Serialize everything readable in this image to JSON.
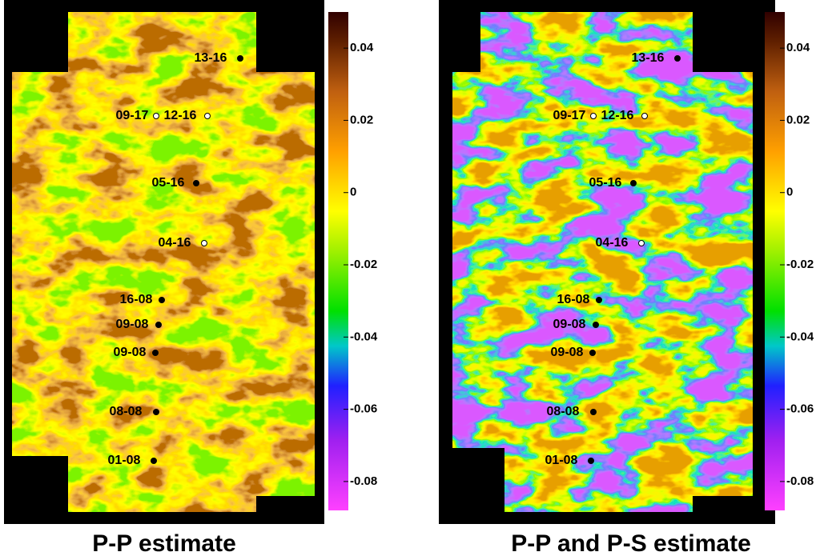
{
  "chart_data": [
    {
      "type": "heatmap",
      "title": "P-P estimate",
      "ylim": [
        -0.088,
        0.05
      ],
      "yticks": [
        0.04,
        0.02,
        0,
        -0.02,
        -0.04,
        -0.06,
        -0.08
      ],
      "wells": [
        {
          "label": "13-16",
          "marker": "#000000"
        },
        {
          "label": "09-17",
          "marker": "#ffffff"
        },
        {
          "label": "12-16",
          "marker": "#ffffff"
        },
        {
          "label": "05-16",
          "marker": "#000000"
        },
        {
          "label": "04-16",
          "marker": "#ffffff"
        },
        {
          "label": "16-08",
          "marker": "#000000"
        },
        {
          "label": "09-08",
          "marker": "#000000"
        },
        {
          "label": "09-08",
          "marker": "#000000"
        },
        {
          "label": "08-08",
          "marker": "#000000"
        },
        {
          "label": "01-08",
          "marker": "#000000"
        }
      ]
    },
    {
      "type": "heatmap",
      "title": "P-P and P-S estimate",
      "ylim": [
        -0.088,
        0.05
      ],
      "yticks": [
        0.04,
        0.02,
        0,
        -0.02,
        -0.04,
        -0.06,
        -0.08
      ],
      "wells": [
        {
          "label": "13-16",
          "marker": "#000000"
        },
        {
          "label": "09-17",
          "marker": "#ffffff"
        },
        {
          "label": "12-16",
          "marker": "#ffffff"
        },
        {
          "label": "05-16",
          "marker": "#000000"
        },
        {
          "label": "04-16",
          "marker": "#ffffff"
        },
        {
          "label": "16-08",
          "marker": "#000000"
        },
        {
          "label": "09-08",
          "marker": "#000000"
        },
        {
          "label": "09-08",
          "marker": "#000000"
        },
        {
          "label": "08-08",
          "marker": "#000000"
        },
        {
          "label": "01-08",
          "marker": "#000000"
        }
      ]
    }
  ]
}
